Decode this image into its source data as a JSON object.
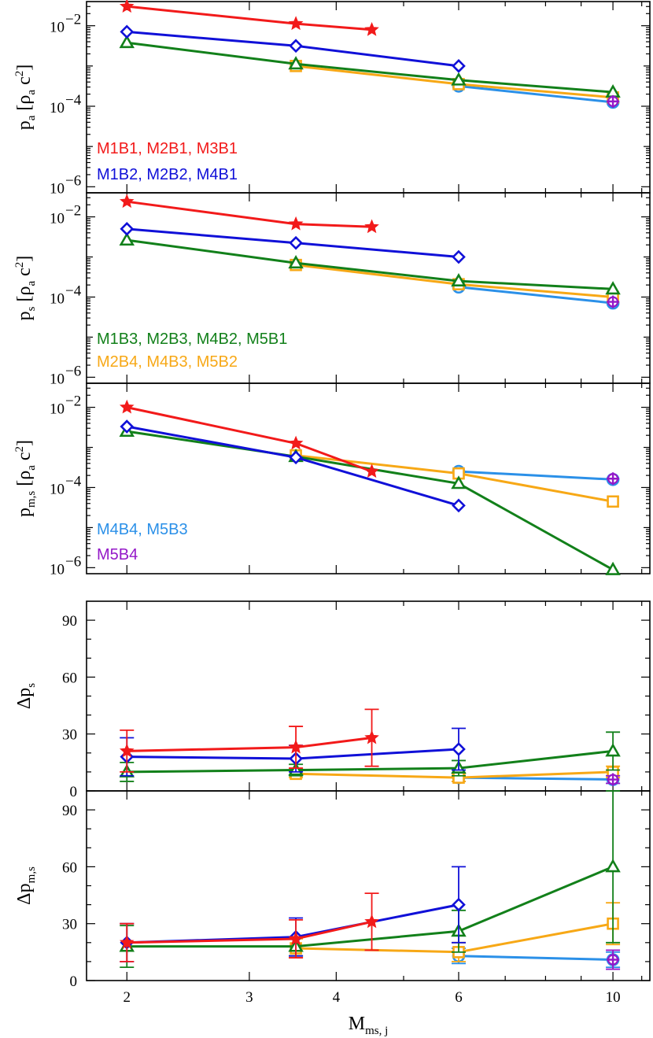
{
  "figure": {
    "xlabel": "M",
    "xlabel_sub": "ms, j",
    "x_ticks": [
      2,
      3,
      4,
      6,
      10
    ],
    "xlim": [
      1.75,
      11.3
    ],
    "xscale": "log"
  },
  "colors": {
    "red": "#f21a1a",
    "blue": "#1010d8",
    "green": "#12801a",
    "orange": "#f7a816",
    "lightblue": "#2b90e8",
    "purple": "#9418c8"
  },
  "chart_data": [
    {
      "type": "line",
      "panel": "pa",
      "ylabel": {
        "main": "p",
        "sub": "a",
        "unit": "[ρ",
        "unit_sub": "a",
        "unit_tail": " c",
        "unit_sup": "2",
        "close": "]"
      },
      "yscale": "log",
      "ylim_log10": [
        -6.15,
        -1.4
      ],
      "y_ticks": [
        {
          "exp": -2,
          "base": "10",
          "sup": "−2"
        },
        {
          "exp": -4,
          "base": "10",
          "sup": "−4"
        },
        {
          "exp": -6,
          "base": "10",
          "sup": "−6"
        }
      ],
      "series": [
        {
          "color": "red",
          "marker": "star",
          "x": [
            2,
            3.5,
            4.5
          ],
          "y_log10": [
            -1.52,
            -1.95,
            -2.1
          ]
        },
        {
          "color": "blue",
          "marker": "diamond",
          "x": [
            2,
            3.5,
            6
          ],
          "y_log10": [
            -2.15,
            -2.5,
            -3.0
          ]
        },
        {
          "color": "green",
          "marker": "triangle",
          "x": [
            2,
            3.5,
            6,
            10
          ],
          "y_log10": [
            -2.42,
            -2.95,
            -3.35,
            -3.65
          ]
        },
        {
          "color": "orange",
          "marker": "square",
          "x": [
            3.5,
            6,
            10
          ],
          "y_log10": [
            -3.0,
            -3.45,
            -3.78
          ]
        },
        {
          "color": "lightblue",
          "marker": "circle",
          "x": [
            6,
            10
          ],
          "y_log10": [
            -3.5,
            -3.9
          ]
        },
        {
          "color": "purple",
          "marker": "plus",
          "x": [
            10
          ],
          "y_log10": [
            -3.88
          ]
        }
      ],
      "legend": [
        {
          "text": "M1B1, M2B1, M3B1",
          "color": "red"
        },
        {
          "text": "M1B2, M2B2, M4B1",
          "color": "blue"
        }
      ]
    },
    {
      "type": "line",
      "panel": "ps",
      "ylabel": {
        "main": "p",
        "sub": "s",
        "unit": "[ρ",
        "unit_sub": "a",
        "unit_tail": " c",
        "unit_sup": "2",
        "close": "]"
      },
      "yscale": "log",
      "ylim_log10": [
        -6.15,
        -1.4
      ],
      "y_ticks": [
        {
          "exp": -2,
          "base": "10",
          "sup": "−2"
        },
        {
          "exp": -4,
          "base": "10",
          "sup": "−4"
        },
        {
          "exp": -6,
          "base": "10",
          "sup": "−6"
        }
      ],
      "series": [
        {
          "color": "red",
          "marker": "star",
          "x": [
            2,
            3.5,
            4.5
          ],
          "y_log10": [
            -1.62,
            -2.18,
            -2.25
          ]
        },
        {
          "color": "blue",
          "marker": "diamond",
          "x": [
            2,
            3.5,
            6
          ],
          "y_log10": [
            -2.3,
            -2.65,
            -3.0
          ]
        },
        {
          "color": "green",
          "marker": "triangle",
          "x": [
            2,
            3.5,
            6,
            10
          ],
          "y_log10": [
            -2.58,
            -3.15,
            -3.6,
            -3.8
          ]
        },
        {
          "color": "orange",
          "marker": "square",
          "x": [
            3.5,
            6,
            10
          ],
          "y_log10": [
            -3.2,
            -3.68,
            -4.0
          ]
        },
        {
          "color": "lightblue",
          "marker": "circle",
          "x": [
            6,
            10
          ],
          "y_log10": [
            -3.75,
            -4.15
          ]
        },
        {
          "color": "purple",
          "marker": "plus",
          "x": [
            10
          ],
          "y_log10": [
            -4.12
          ]
        }
      ],
      "legend": [
        {
          "text": "M1B3, M2B3, M4B2, M5B1",
          "color": "green"
        },
        {
          "text": "M2B4, M4B3, M5B2",
          "color": "orange"
        }
      ]
    },
    {
      "type": "line",
      "panel": "pms",
      "ylabel": {
        "main": "p",
        "sub": "m,s",
        "unit": "[ρ",
        "unit_sub": "a",
        "unit_tail": " c",
        "unit_sup": "2",
        "close": "]"
      },
      "yscale": "log",
      "ylim_log10": [
        -6.15,
        -1.4
      ],
      "y_ticks": [
        {
          "exp": -2,
          "base": "10",
          "sup": "−2"
        },
        {
          "exp": -4,
          "base": "10",
          "sup": "−4"
        },
        {
          "exp": -6,
          "base": "10",
          "sup": "−6"
        }
      ],
      "series": [
        {
          "color": "red",
          "marker": "star",
          "x": [
            2,
            3.5,
            4.5
          ],
          "y_log10": [
            -2.0,
            -2.9,
            -3.6
          ]
        },
        {
          "color": "blue",
          "marker": "diamond",
          "x": [
            2,
            3.5,
            6
          ],
          "y_log10": [
            -2.48,
            -3.25,
            -4.45
          ]
        },
        {
          "color": "green",
          "marker": "triangle",
          "x": [
            2,
            3.5,
            6,
            10
          ],
          "y_log10": [
            -2.6,
            -3.23,
            -3.9,
            -6.05
          ]
        },
        {
          "color": "orange",
          "marker": "square",
          "x": [
            3.5,
            6,
            10
          ],
          "y_log10": [
            -3.2,
            -3.65,
            -4.35
          ]
        },
        {
          "color": "lightblue",
          "marker": "circle",
          "x": [
            6,
            10
          ],
          "y_log10": [
            -3.6,
            -3.8
          ]
        },
        {
          "color": "purple",
          "marker": "plus",
          "x": [
            10
          ],
          "y_log10": [
            -3.78
          ]
        }
      ],
      "legend": [
        {
          "text": "M4B4, M5B3",
          "color": "lightblue"
        },
        {
          "text": "M5B4",
          "color": "purple"
        }
      ]
    },
    {
      "type": "line",
      "panel": "dps",
      "ylabel": {
        "main": "Δp",
        "sub": "s"
      },
      "yscale": "linear",
      "ylim": [
        0,
        100
      ],
      "y_ticks": [
        0,
        30,
        60,
        90
      ],
      "series": [
        {
          "color": "red",
          "marker": "star",
          "x": [
            2,
            3.5,
            4.5
          ],
          "y": [
            21,
            23,
            28
          ],
          "err": [
            11,
            11,
            15
          ]
        },
        {
          "color": "blue",
          "marker": "diamond",
          "x": [
            2,
            3.5,
            6
          ],
          "y": [
            18,
            17,
            22
          ],
          "err": [
            10,
            7,
            11
          ]
        },
        {
          "color": "green",
          "marker": "triangle",
          "x": [
            2,
            3.5,
            6,
            10
          ],
          "y": [
            10,
            11,
            12,
            21
          ],
          "err": [
            5,
            3,
            4,
            10
          ]
        },
        {
          "color": "orange",
          "marker": "square",
          "x": [
            3.5,
            6,
            10
          ],
          "y": [
            9,
            7,
            10
          ],
          "err": [
            2,
            2,
            3
          ]
        },
        {
          "color": "lightblue",
          "marker": "circle",
          "x": [
            6,
            10
          ],
          "y": [
            7,
            6
          ],
          "err": [
            2,
            2
          ]
        },
        {
          "color": "purple",
          "marker": "plus",
          "x": [
            10
          ],
          "y": [
            6
          ],
          "err": [
            2
          ]
        }
      ]
    },
    {
      "type": "line",
      "panel": "dpms",
      "ylabel": {
        "main": "Δp",
        "sub": "m,s"
      },
      "yscale": "linear",
      "ylim": [
        0,
        100
      ],
      "y_ticks": [
        0,
        30,
        60,
        90
      ],
      "series": [
        {
          "color": "red",
          "marker": "star",
          "x": [
            2,
            3.5,
            4.5
          ],
          "y": [
            20,
            22,
            31
          ],
          "err": [
            10,
            10,
            15
          ]
        },
        {
          "color": "blue",
          "marker": "diamond",
          "x": [
            2,
            3.5,
            6
          ],
          "y": [
            20,
            23,
            40
          ],
          "err": [
            10,
            10,
            20
          ]
        },
        {
          "color": "green",
          "marker": "triangle",
          "x": [
            2,
            3.5,
            6,
            10
          ],
          "y": [
            18,
            18,
            26,
            60
          ],
          "err": [
            11,
            5,
            11,
            40
          ]
        },
        {
          "color": "orange",
          "marker": "square",
          "x": [
            3.5,
            6,
            10
          ],
          "y": [
            17,
            15,
            30
          ],
          "err": [
            5,
            5,
            11
          ]
        },
        {
          "color": "lightblue",
          "marker": "circle",
          "x": [
            6,
            10
          ],
          "y": [
            13,
            11
          ],
          "err": [
            4,
            4
          ]
        },
        {
          "color": "purple",
          "marker": "plus",
          "x": [
            10
          ],
          "y": [
            11
          ],
          "err": [
            5
          ]
        }
      ]
    }
  ]
}
